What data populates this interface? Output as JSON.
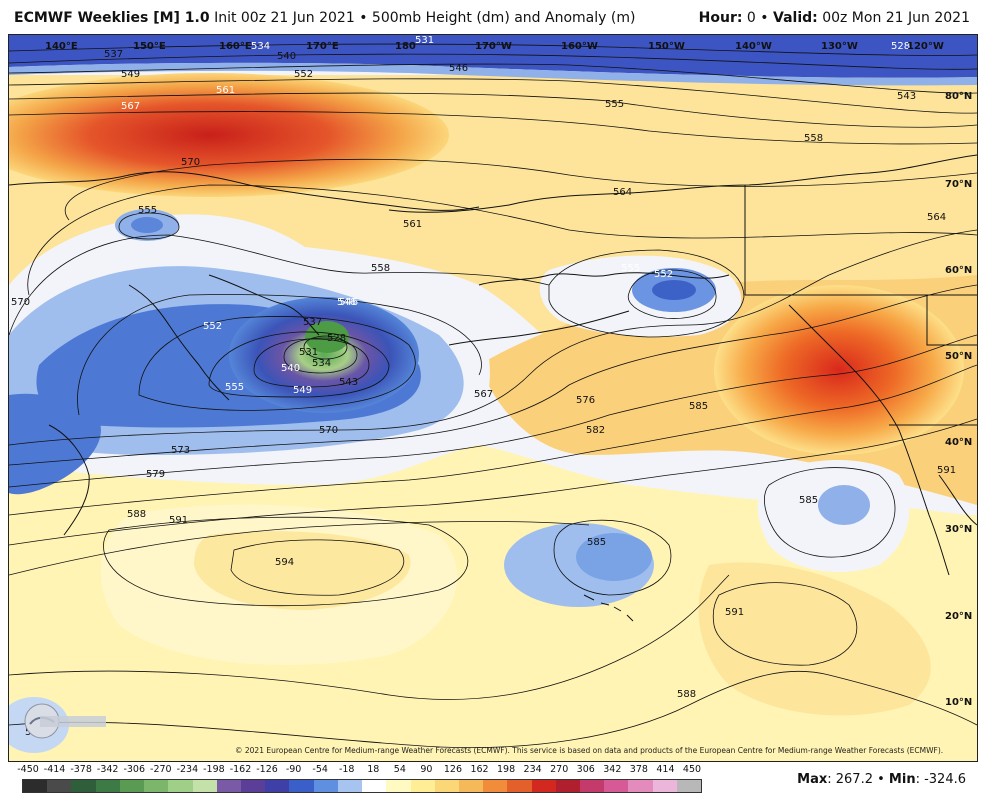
{
  "header": {
    "model": "ECMWF Weeklies [M] 1.0",
    "init": "Init 00z 21 Jun 2021",
    "field": "500mb Height (dm) and Anomaly (m)",
    "hour_label": "Hour:",
    "hour_value": "0",
    "valid_label": "Valid:",
    "valid_value": "00z Mon 21 Jun 2021"
  },
  "map": {
    "lon_labels": [
      "140°E",
      "150°E",
      "160°E",
      "170°E",
      "180",
      "170°W",
      "160°W",
      "150°W",
      "140°W",
      "130°W",
      "120°W"
    ],
    "lat_labels": [
      "80°N",
      "70°N",
      "60°N",
      "50°N",
      "40°N",
      "30°N",
      "20°N",
      "10°N"
    ],
    "contour_labels": [
      "537",
      "549",
      "567",
      "570",
      "561",
      "555",
      "540",
      "552",
      "546",
      "555",
      "543",
      "558",
      "564",
      "561",
      "558",
      "555",
      "552",
      "552",
      "546",
      "537",
      "528",
      "531",
      "540",
      "534",
      "543",
      "549",
      "555",
      "570",
      "567",
      "573",
      "576",
      "579",
      "582",
      "585",
      "588",
      "591",
      "594",
      "585",
      "585",
      "591",
      "591",
      "588",
      "564",
      "570",
      "585",
      "528",
      "531",
      "534",
      "546"
    ],
    "colors": {
      "deep_neg": "#2b3f9e",
      "neg": "#4f7fd6",
      "light_neg": "#a9c7ee",
      "neutral": "#f1f3f8",
      "light_pos": "#fff3a6",
      "pos": "#f6c45a",
      "strong_pos": "#f08a2c",
      "max_pos": "#d8261a",
      "low_center": "#6c4aa8",
      "green_center": "#7fbf5e"
    }
  },
  "copyright": "© 2021 European Centre for Medium-range Weather Forecasts (ECMWF). This service is based on data and products of the European Centre for Medium-range Weather Forecasts (ECMWF).",
  "logo_text": "WeatherBELL",
  "colorbar": {
    "ticks": [
      "-450",
      "-414",
      "-378",
      "-342",
      "-306",
      "-270",
      "-234",
      "-198",
      "-162",
      "-126",
      "-90",
      "-54",
      "-18",
      "18",
      "54",
      "90",
      "126",
      "162",
      "198",
      "234",
      "270",
      "306",
      "342",
      "378",
      "414",
      "450"
    ],
    "colors": [
      "#2c2c2c",
      "#4a4a4a",
      "#2f5e3a",
      "#3d7a45",
      "#5a9a52",
      "#7cb66a",
      "#a0cf88",
      "#c3e1a8",
      "#7a5aa6",
      "#5b3e98",
      "#3f3fa8",
      "#3b5fc9",
      "#5f8fe0",
      "#a6c4ef",
      "#ffffff",
      "#fffac2",
      "#ffee96",
      "#fbd777",
      "#f6b95a",
      "#f08c3a",
      "#e4602a",
      "#d2281f",
      "#b01f2e",
      "#c43a6a",
      "#d65a95",
      "#e38bbd",
      "#ebb6d9",
      "#b8b8b8"
    ]
  },
  "stats": {
    "max_label": "Max",
    "max_value": ": 267.2",
    "sep": " • ",
    "min_label": "Min",
    "min_value": ": -324.6"
  }
}
